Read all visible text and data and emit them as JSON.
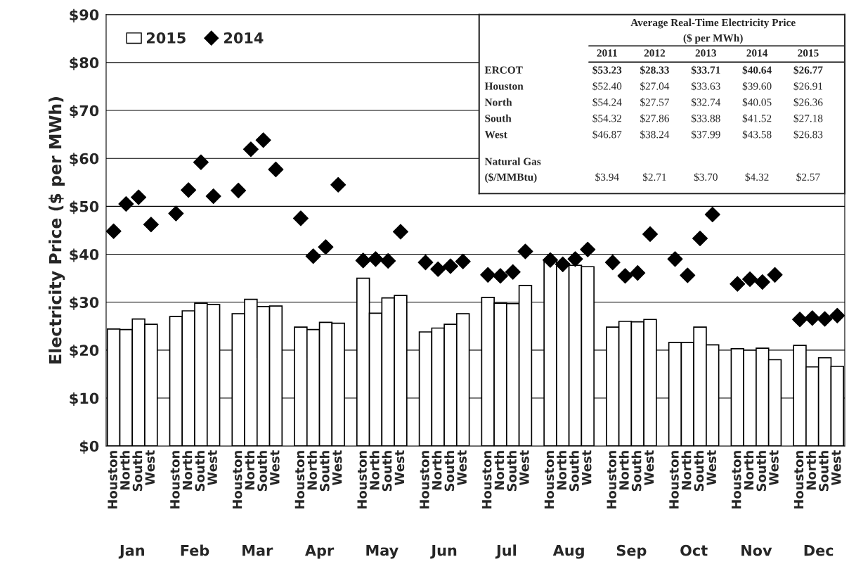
{
  "chart_data": {
    "type": "bar",
    "categories": [
      "Houston",
      "North",
      "South",
      "West",
      "Houston",
      "North",
      "South",
      "West",
      "Houston",
      "North",
      "South",
      "West",
      "Houston",
      "North",
      "South",
      "West",
      "Houston",
      "North",
      "South",
      "West",
      "Houston",
      "North",
      "South",
      "West",
      "Houston",
      "North",
      "South",
      "West",
      "Houston",
      "North",
      "South",
      "West",
      "Houston",
      "North",
      "South",
      "West",
      "Houston",
      "North",
      "South",
      "West",
      "Houston",
      "North",
      "South",
      "West",
      "Houston",
      "North",
      "South",
      "West"
    ],
    "series": [
      {
        "name": "2015",
        "color": "#ffffff",
        "values": [
          24.4,
          24.3,
          26.5,
          25.4,
          27.0,
          28.2,
          29.8,
          29.5,
          27.6,
          30.6,
          29.1,
          29.2,
          24.8,
          24.3,
          25.8,
          25.6,
          35.0,
          27.7,
          30.9,
          31.4,
          23.8,
          24.6,
          25.4,
          27.6,
          31.0,
          29.8,
          29.7,
          33.5,
          38.8,
          38.0,
          37.7,
          37.4,
          24.8,
          26.0,
          25.9,
          26.4,
          21.6,
          21.6,
          24.8,
          21.1,
          20.3,
          20.0,
          20.4,
          18.0,
          21.0,
          16.5,
          18.4,
          16.6
        ]
      },
      {
        "name": "2014",
        "type": "scatter",
        "color": "#000000",
        "values": [
          44.8,
          50.5,
          51.9,
          46.2,
          48.5,
          53.4,
          59.2,
          52.1,
          53.3,
          61.9,
          63.8,
          57.7,
          47.5,
          39.6,
          41.5,
          54.5,
          38.7,
          39.0,
          38.6,
          44.7,
          38.3,
          36.9,
          37.5,
          38.5,
          35.7,
          35.5,
          36.3,
          40.6,
          38.8,
          37.9,
          39.0,
          41.0,
          38.3,
          35.5,
          36.1,
          44.2,
          39.0,
          35.6,
          43.3,
          48.3,
          33.8,
          34.8,
          34.2,
          35.7,
          26.4,
          26.7,
          26.5,
          27.2
        ]
      }
    ],
    "ylabel": "Electricity Price ($ per MWh)",
    "ylim": [
      0,
      90
    ],
    "yticks": [
      {
        "value": 0,
        "label": "$0"
      },
      {
        "value": 10,
        "label": "$10"
      },
      {
        "value": 20,
        "label": "$20"
      },
      {
        "value": 30,
        "label": "$30"
      },
      {
        "value": 40,
        "label": "$40"
      },
      {
        "value": 50,
        "label": "$50"
      },
      {
        "value": 60,
        "label": "$60"
      },
      {
        "value": 70,
        "label": "$70"
      },
      {
        "value": 80,
        "label": "$80"
      },
      {
        "value": 90,
        "label": "$90"
      }
    ],
    "grid": "y",
    "legend": "top left",
    "marker": "diamond",
    "annotations": [
      "Jan",
      "Feb",
      "Mar",
      "Apr",
      "May",
      "Jun",
      "Jul",
      "Aug",
      "Sep",
      "Oct",
      "Nov",
      "Dec",
      "Average Real-Time Electricity Price",
      "($ per MWh)",
      "2011",
      "2012",
      "2013",
      "2014",
      "2015",
      "ERCOT",
      "$53.23",
      "$28.33",
      "$33.71",
      "$40.64",
      "$26.77",
      "Houston",
      "$52.40",
      "$27.04",
      "$33.63",
      "$39.60",
      "$26.91",
      "North",
      "$54.24",
      "$27.57",
      "$32.74",
      "$40.05",
      "$26.36",
      "South",
      "$54.32",
      "$27.86",
      "$33.88",
      "$41.52",
      "$27.18",
      "West",
      "$46.87",
      "$38.24",
      "$37.99",
      "$43.58",
      "$26.83",
      "Natural Gas\n($/MMBtu)",
      "$3.94",
      "$2.71",
      "$3.70",
      "$4.32",
      "$2.57"
    ]
  }
}
